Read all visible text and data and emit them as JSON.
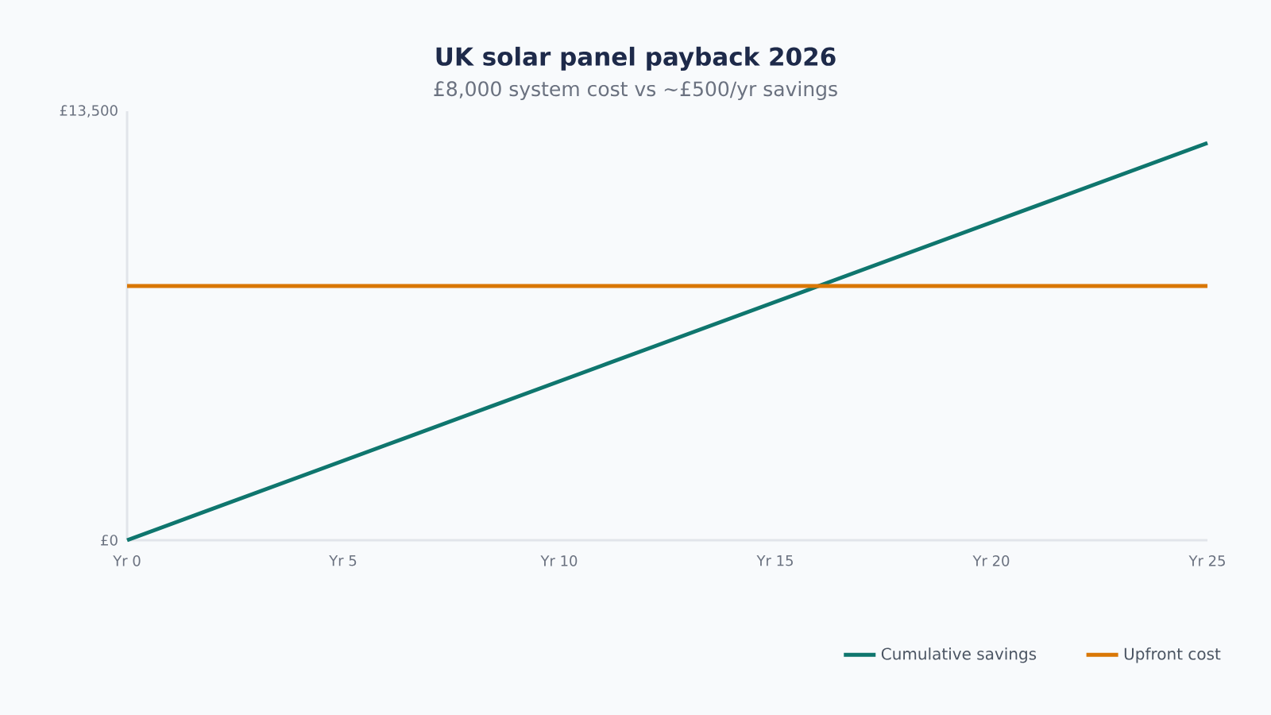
{
  "chart_data": {
    "type": "line",
    "title": "UK solar panel payback 2026",
    "subtitle": "£8,000 system cost vs ~£500/yr savings",
    "categories": [
      "Yr 0",
      null,
      null,
      null,
      null,
      "Yr 5",
      null,
      null,
      null,
      null,
      "Yr 10",
      null,
      null,
      null,
      null,
      "Yr 15",
      null,
      null,
      null,
      null,
      "Yr 20",
      null,
      null,
      null,
      null,
      "Yr 25"
    ],
    "series": [
      {
        "name": "Cumulative savings",
        "color": "#0f766e",
        "values": [
          0,
          500,
          1000,
          1500,
          2000,
          2500,
          3000,
          3500,
          4000,
          4500,
          5000,
          5500,
          6000,
          6500,
          7000,
          7500,
          8000,
          8500,
          9000,
          9500,
          10000,
          10500,
          11000,
          11500,
          12000,
          12500
        ]
      },
      {
        "name": "Upfront cost",
        "color": "#d97706",
        "values": [
          8000,
          8000,
          8000,
          8000,
          8000,
          8000,
          8000,
          8000,
          8000,
          8000,
          8000,
          8000,
          8000,
          8000,
          8000,
          8000,
          8000,
          8000,
          8000,
          8000,
          8000,
          8000,
          8000,
          8000,
          8000,
          8000
        ]
      }
    ],
    "ylim": [
      0,
      13500
    ],
    "yticks": [
      {
        "value": 0,
        "label": "£0"
      },
      {
        "value": 13500,
        "label": "£13,500"
      }
    ],
    "legend": "bottom right",
    "marker": "none",
    "line_style": "solid"
  }
}
